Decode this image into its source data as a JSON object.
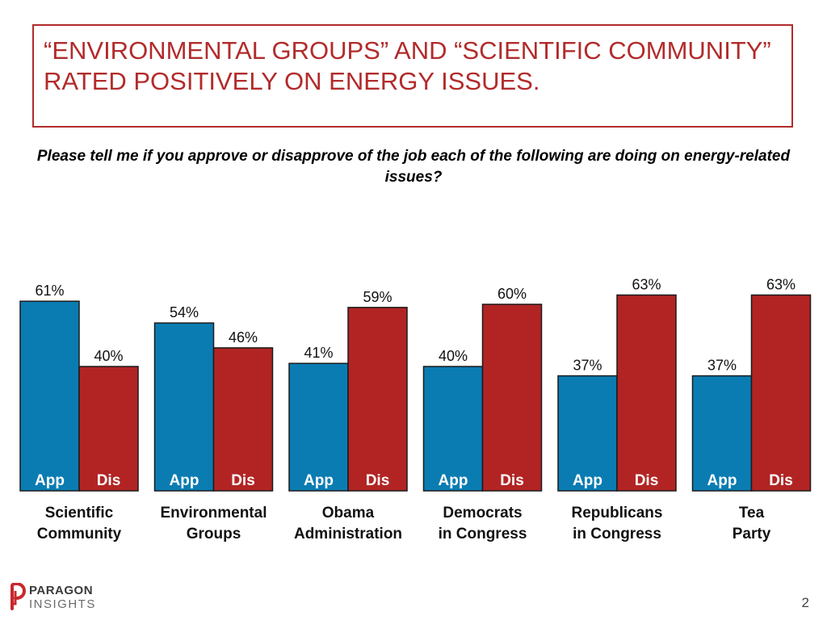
{
  "header": {
    "title": "“ENVIRONMENTAL GROUPS” AND “SCIENTIFIC COMMUNITY” RATED POSITIVELY ON ENERGY ISSUES.",
    "question": "Please tell me if you approve or disapprove of the job each of the following are doing on energy-related issues?"
  },
  "colors": {
    "approve": "#0a7cb2",
    "disapprove": "#b22424",
    "title": "#b22b2b"
  },
  "chart_data": {
    "type": "bar",
    "categories": [
      [
        "Scientific",
        "Community"
      ],
      [
        "Environmental",
        "Groups"
      ],
      [
        "Obama",
        "Administration"
      ],
      [
        "Democrats",
        "in Congress"
      ],
      [
        "Republicans",
        "in Congress"
      ],
      [
        "Tea",
        "Party"
      ]
    ],
    "series": [
      {
        "name": "App",
        "values": [
          61,
          54,
          41,
          40,
          37,
          37
        ]
      },
      {
        "name": "Dis",
        "values": [
          40,
          46,
          59,
          60,
          63,
          63
        ]
      }
    ],
    "value_labels": {
      "App": [
        "61%",
        "54%",
        "41%",
        "40%",
        "37%",
        "37%"
      ],
      "Dis": [
        "40%",
        "46%",
        "59%",
        "60%",
        "63%",
        "63%"
      ]
    },
    "ylim": [
      0,
      100
    ],
    "grid": false,
    "unit": "%"
  },
  "footer": {
    "logo_line1": "PARAGON",
    "logo_line2": "INSIGHTS",
    "page_number": "2"
  }
}
